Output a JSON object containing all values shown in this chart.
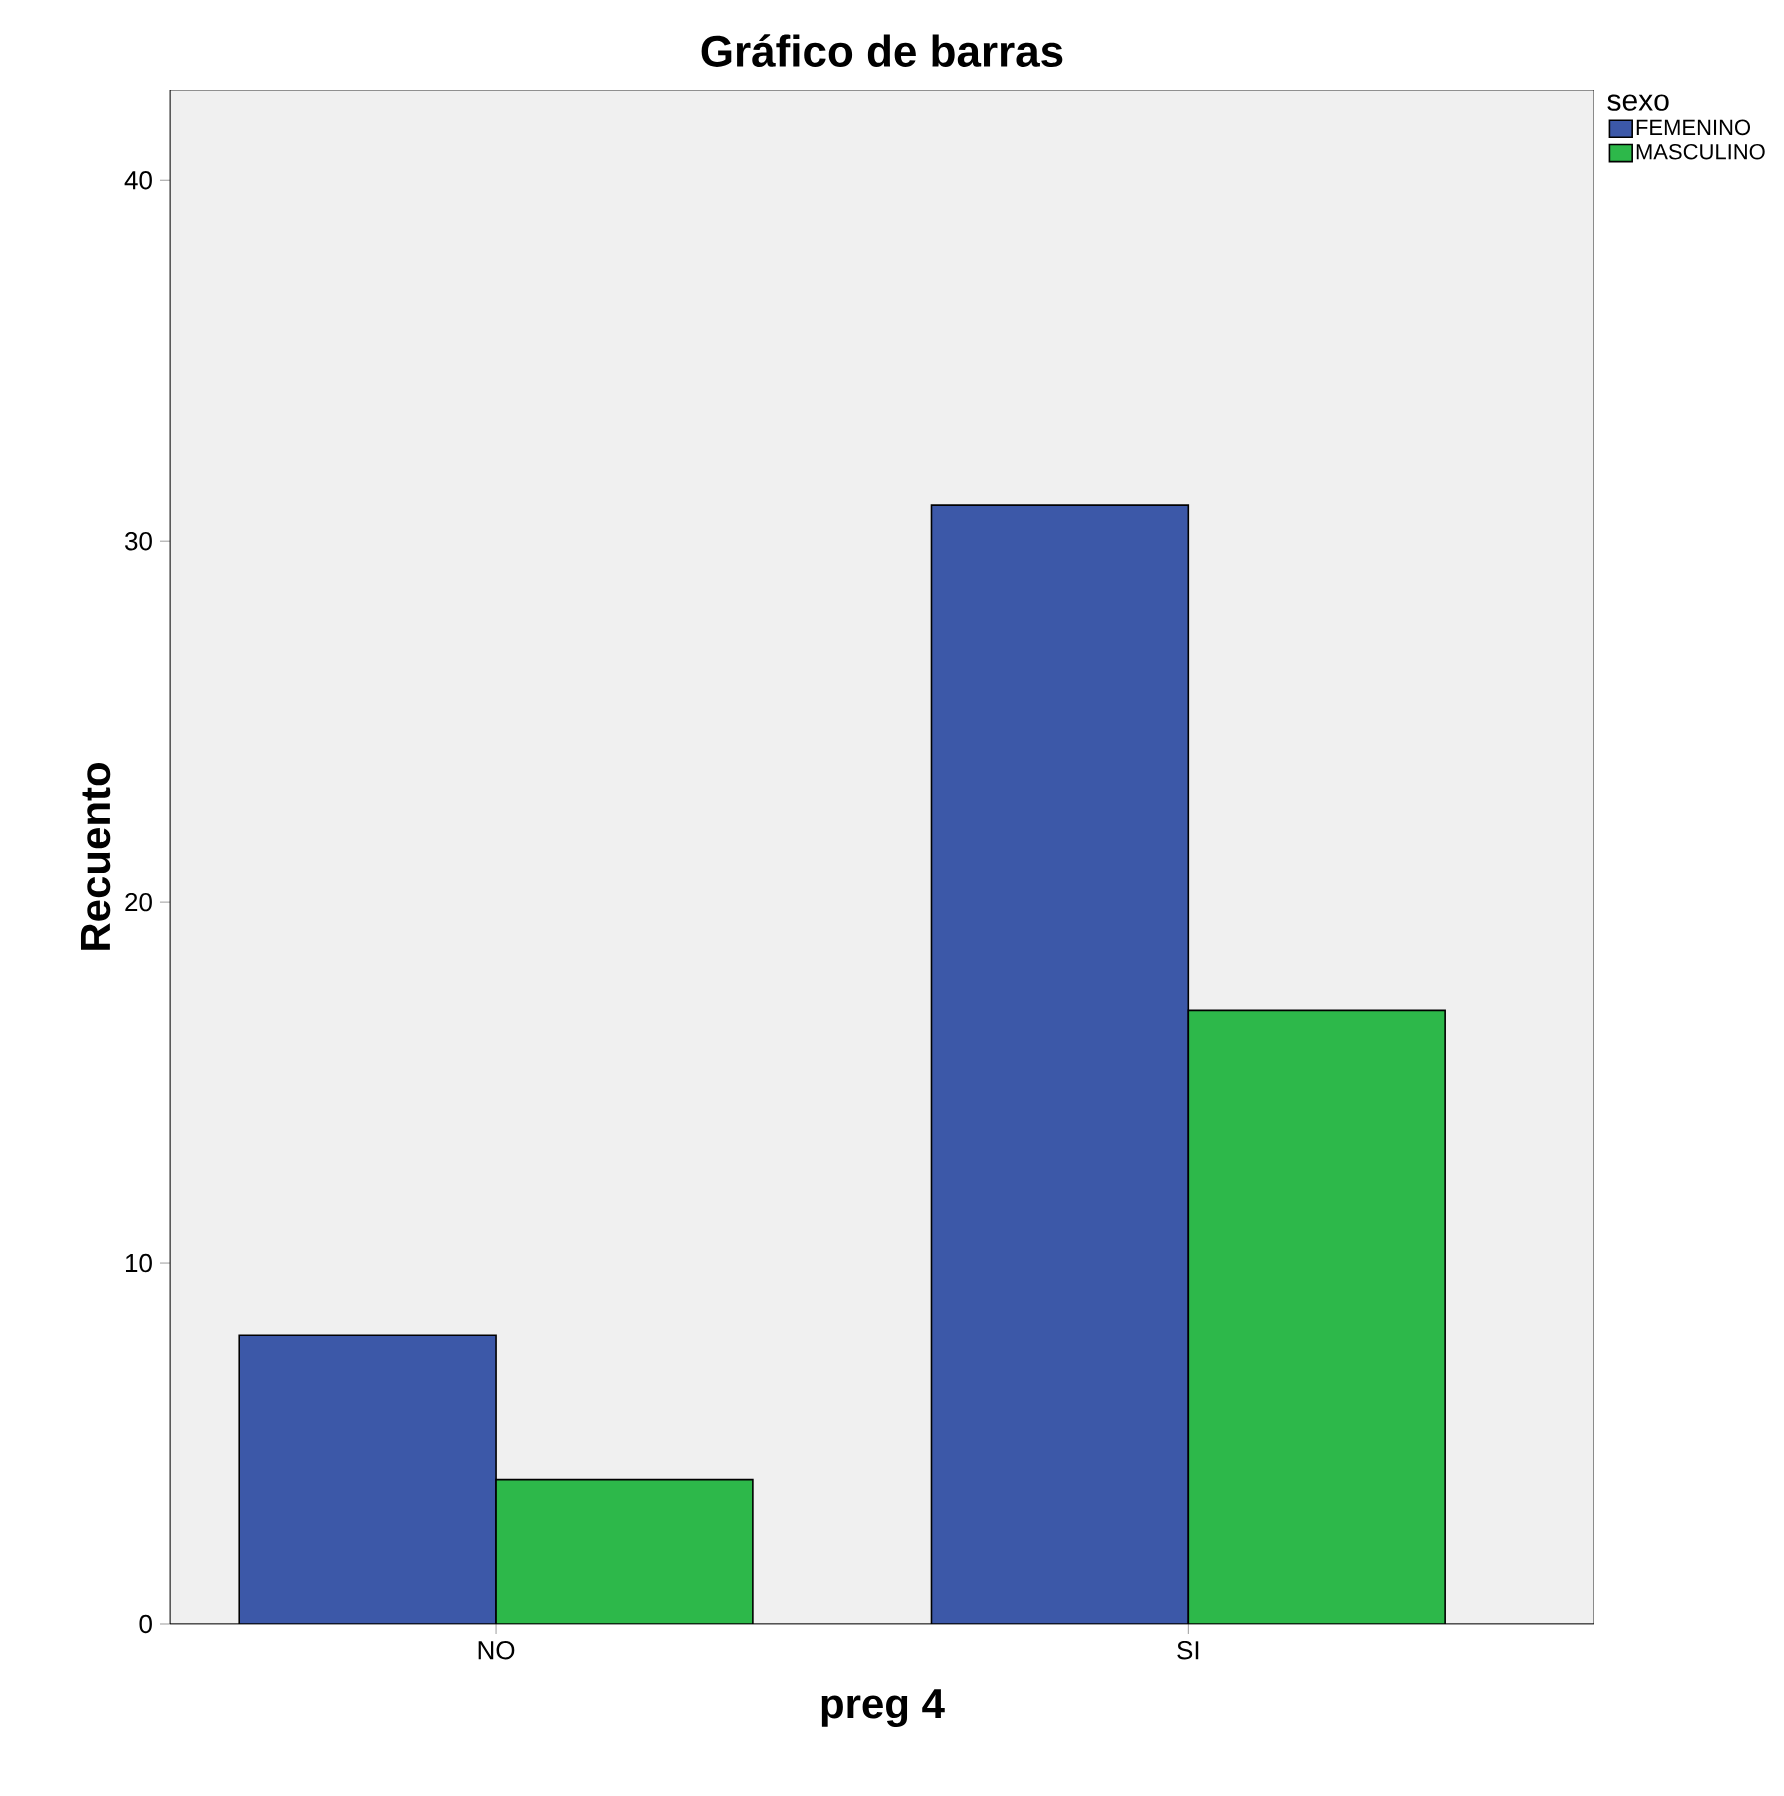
{
  "chart_data": {
    "type": "bar",
    "title": "Gráfico de barras",
    "xlabel": "preg 4",
    "ylabel": "Recuento",
    "legend_title": "sexo",
    "categories": [
      "NO",
      "SI"
    ],
    "series": [
      {
        "name": "FEMENINO",
        "color": "#3c58a8",
        "values": [
          8,
          31
        ]
      },
      {
        "name": "MASCULINO",
        "color": "#2db84a",
        "values": [
          4,
          17
        ]
      }
    ],
    "ylim": [
      0,
      42.5
    ],
    "yticks": [
      0,
      10,
      20,
      30,
      40
    ],
    "legend": "top right"
  }
}
